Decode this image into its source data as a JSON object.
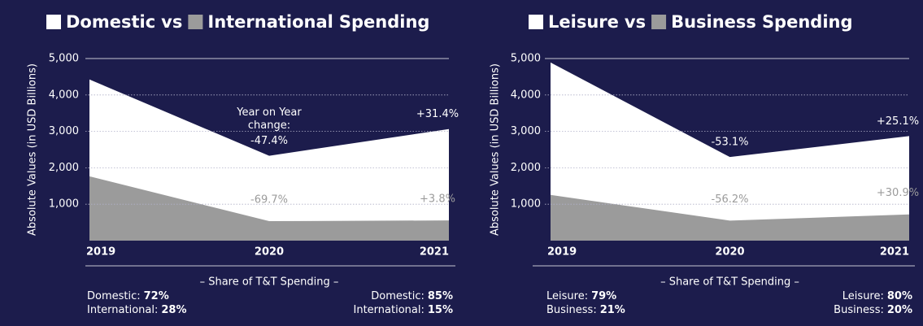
{
  "chart_data": [
    {
      "type": "area",
      "title_connector": "vs",
      "title_suffix": "Spending",
      "y_label": "Absolute Values (in USD Billions)",
      "categories": [
        "2019",
        "2020",
        "2021"
      ],
      "series": [
        {
          "name": "Domestic",
          "color": "#ffffff",
          "label_color": "#ffffff",
          "values": [
            4425,
            2330,
            3065
          ],
          "change_labels": [
            "-47.4%",
            "+31.4%"
          ]
        },
        {
          "name": "International",
          "color": "#9b9b9b",
          "label_color": "#9b9b9b",
          "values": [
            1765,
            535,
            555
          ],
          "change_labels": [
            "-69.7%",
            "+3.8%"
          ]
        }
      ],
      "annotation": [
        "Year on Year",
        "change:"
      ],
      "ylim": [
        0,
        5000
      ],
      "yticks": [
        {
          "value": 1000,
          "label": "1,000"
        },
        {
          "value": 2000,
          "label": "2,000"
        },
        {
          "value": 3000,
          "label": "3,000"
        },
        {
          "value": 4000,
          "label": "4,000"
        },
        {
          "value": 5000,
          "label": "5,000"
        }
      ],
      "share_title": "– Share of T&T Spending –",
      "shares_left": [
        [
          "Domestic:",
          "72%"
        ],
        [
          "International:",
          "28%"
        ]
      ],
      "shares_right": [
        [
          "Domestic:",
          "85%"
        ],
        [
          "International:",
          "15%"
        ]
      ]
    },
    {
      "type": "area",
      "title_connector": "vs",
      "title_suffix": "Spending",
      "y_label": "Absolute Values (in USD Billions)",
      "categories": [
        "2019",
        "2020",
        "2021"
      ],
      "series": [
        {
          "name": "Leisure",
          "color": "#ffffff",
          "label_color": "#ffffff",
          "values": [
            4890,
            2295,
            2870
          ],
          "change_labels": [
            "-53.1%",
            "+25.1%"
          ]
        },
        {
          "name": "Business",
          "color": "#9b9b9b",
          "label_color": "#9b9b9b",
          "values": [
            1255,
            550,
            720
          ],
          "change_labels": [
            "-56.2%",
            "+30.9%"
          ]
        }
      ],
      "ylim": [
        0,
        5000
      ],
      "yticks": [
        {
          "value": 1000,
          "label": "1,000"
        },
        {
          "value": 2000,
          "label": "2,000"
        },
        {
          "value": 3000,
          "label": "3,000"
        },
        {
          "value": 4000,
          "label": "4,000"
        },
        {
          "value": 5000,
          "label": "5,000"
        }
      ],
      "share_title": "– Share of T&T Spending –",
      "shares_left": [
        [
          "Leisure:",
          "79%"
        ],
        [
          "Business:",
          "21%"
        ]
      ],
      "shares_right": [
        [
          "Leisure:",
          "80%"
        ],
        [
          "Business:",
          "20%"
        ]
      ]
    }
  ]
}
